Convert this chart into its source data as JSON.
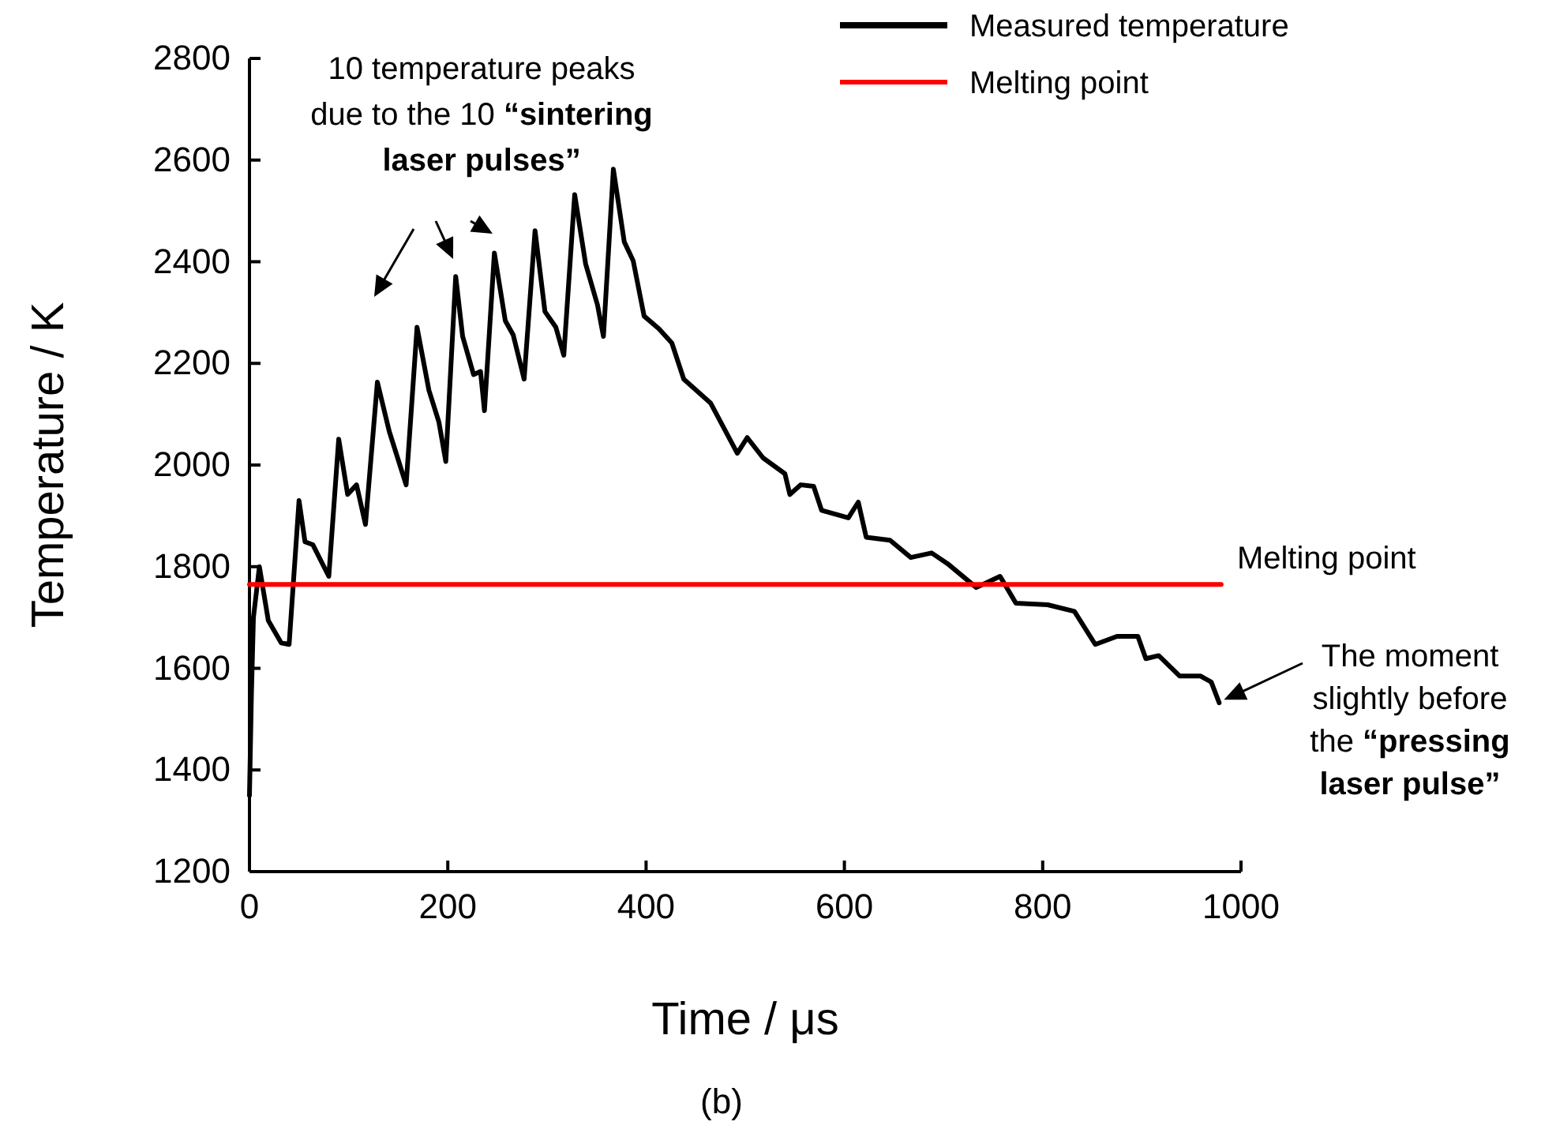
{
  "chart_data": {
    "type": "line",
    "xlabel": "Time / μs",
    "ylabel": "Temperature / K",
    "xlim": [
      0,
      1000
    ],
    "xticks": [
      0,
      200,
      400,
      600,
      800,
      1000
    ],
    "ylim": [
      1200,
      2800
    ],
    "yticks": [
      1200,
      1400,
      1600,
      1800,
      2000,
      2200,
      2400,
      2600,
      2800
    ],
    "legend": "top right",
    "grid": false,
    "line_style": "solid",
    "marker": "none",
    "series": [
      {
        "name": "Measured temperature",
        "color": "#000000",
        "x": [
          0,
          2,
          4,
          10,
          19,
          32,
          40,
          50,
          56,
          64,
          80,
          90,
          99,
          108,
          117,
          129,
          141,
          158,
          169,
          181,
          191,
          198,
          208,
          215,
          226,
          233,
          237,
          247,
          258,
          266,
          277,
          288,
          298,
          309,
          317,
          328,
          339,
          351,
          357,
          367,
          378,
          387,
          398,
          413,
          426,
          438,
          465,
          492,
          502,
          518,
          540,
          545,
          556,
          569,
          577,
          604,
          614,
          622,
          646,
          667,
          688,
          704,
          733,
          757,
          773,
          805,
          832,
          853,
          875,
          896,
          904,
          917,
          938,
          959,
          970,
          978
        ],
        "values": [
          1350,
          1550,
          1700,
          1800,
          1694,
          1650,
          1647,
          1930,
          1849,
          1843,
          1781,
          2051,
          1942,
          1961,
          1883,
          2163,
          2066,
          1961,
          2271,
          2147,
          2085,
          2007,
          2371,
          2253,
          2178,
          2184,
          2107,
          2417,
          2284,
          2256,
          2169,
          2461,
          2302,
          2271,
          2216,
          2532,
          2396,
          2315,
          2253,
          2582,
          2439,
          2402,
          2293,
          2268,
          2240,
          2169,
          2122,
          2023,
          2054,
          2014,
          1983,
          1942,
          1961,
          1958,
          1911,
          1896,
          1927,
          1858,
          1852,
          1818,
          1827,
          1806,
          1759,
          1781,
          1728,
          1725,
          1712,
          1647,
          1663,
          1663,
          1619,
          1625,
          1585,
          1585,
          1573,
          1532
        ]
      },
      {
        "name": "Melting point",
        "color": "#ff0000",
        "x": [
          0,
          980
        ],
        "values": [
          1765,
          1765
        ]
      }
    ],
    "annotations": [
      "10 temperature peaks due to the 10 “sintering laser pulses”",
      {
        "text": "Melting point",
        "x": 980,
        "y": 1765
      },
      "The moment slightly before the “pressing laser pulse”",
      "(b)"
    ]
  }
}
